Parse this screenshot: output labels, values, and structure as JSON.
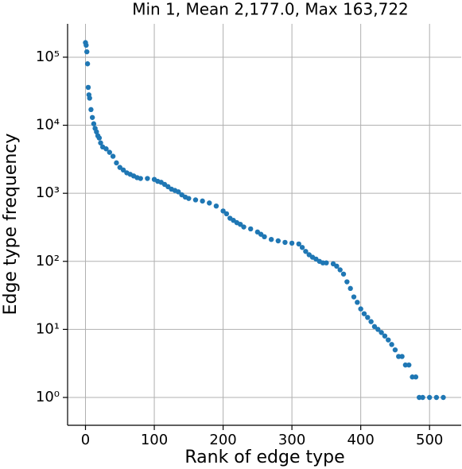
{
  "chart_data": {
    "type": "scatter",
    "title": "Min 1, Mean 2,177.0, Max 163,722",
    "x_label": "Rank of edge type",
    "y_label": "Edge type frequency",
    "log_y": true,
    "grid": true,
    "color": "#1f77b4",
    "xlim": [
      -26,
      546
    ],
    "ylim": [
      0.39,
      309000
    ],
    "xticks": [
      0,
      100,
      200,
      300,
      400,
      500
    ],
    "yticks": [
      {
        "value": 1,
        "label": "10⁰"
      },
      {
        "value": 10,
        "label": "10¹"
      },
      {
        "value": 100,
        "label": "10²"
      },
      {
        "value": 1000,
        "label": "10³"
      },
      {
        "value": 10000,
        "label": "10⁴"
      },
      {
        "value": 100000,
        "label": "10⁵"
      }
    ],
    "x": [
      0,
      1,
      2,
      3,
      4,
      5,
      6,
      8,
      10,
      12,
      14,
      16,
      18,
      20,
      22,
      25,
      30,
      35,
      40,
      45,
      50,
      55,
      60,
      65,
      70,
      75,
      80,
      90,
      100,
      105,
      110,
      115,
      120,
      125,
      130,
      135,
      140,
      145,
      150,
      160,
      170,
      180,
      190,
      200,
      205,
      210,
      215,
      220,
      225,
      230,
      240,
      250,
      255,
      260,
      270,
      280,
      290,
      300,
      310,
      315,
      320,
      325,
      330,
      335,
      340,
      345,
      350,
      360,
      365,
      370,
      375,
      380,
      385,
      390,
      395,
      400,
      405,
      410,
      415,
      420,
      425,
      430,
      435,
      440,
      445,
      450,
      455,
      460,
      465,
      470,
      475,
      480,
      485,
      490,
      500,
      510,
      520
    ],
    "values": [
      163722,
      150000,
      120000,
      80000,
      36000,
      28000,
      25000,
      17000,
      13000,
      10500,
      9000,
      8000,
      7000,
      6500,
      5500,
      4800,
      4500,
      4000,
      3500,
      2800,
      2400,
      2200,
      2000,
      1900,
      1800,
      1700,
      1650,
      1650,
      1600,
      1500,
      1450,
      1350,
      1250,
      1150,
      1100,
      1050,
      950,
      880,
      840,
      800,
      770,
      720,
      650,
      550,
      500,
      430,
      400,
      370,
      350,
      320,
      300,
      270,
      250,
      230,
      210,
      200,
      190,
      185,
      180,
      160,
      140,
      125,
      115,
      108,
      100,
      95,
      95,
      92,
      85,
      75,
      65,
      50,
      40,
      30,
      25,
      20,
      17,
      15,
      13,
      11,
      10,
      9,
      8,
      7,
      6,
      5,
      4,
      4,
      3,
      3,
      2,
      2,
      1,
      1,
      1,
      1,
      1
    ]
  }
}
